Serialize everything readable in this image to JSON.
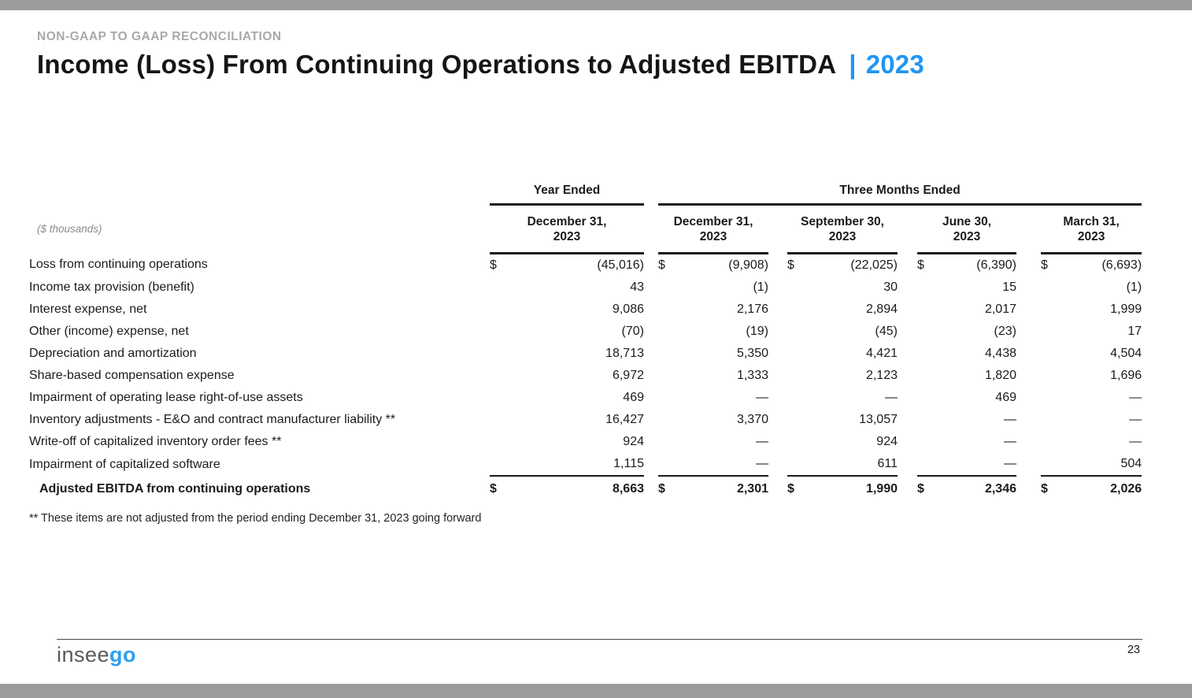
{
  "slide": {
    "eyebrow": "NON-GAAP TO GAAP RECONCILIATION",
    "title": "Income (Loss) From Continuing Operations to Adjusted EBITDA",
    "title_separator": "|",
    "title_year": "2023",
    "footnote": "** These items are not adjusted from the period ending December 31, 2023 going forward",
    "page_number": "23",
    "logo": {
      "text_gray": "insee",
      "text_blue": "go"
    },
    "colors": {
      "accent_blue": "#2196F3",
      "logo_blue": "#2BA0EE",
      "logo_gray": "#57595B",
      "bar_gray": "#9B9B9B",
      "eyebrow_gray": "#A9A9A9"
    }
  },
  "table": {
    "units_note": "($ thousands)",
    "currency_symbol": "$",
    "group_headers": {
      "year_ended": "Year Ended",
      "three_months": "Three Months Ended"
    },
    "periods": [
      {
        "line1": "December 31,",
        "line2": "2023"
      },
      {
        "line1": "December 31,",
        "line2": "2023"
      },
      {
        "line1": "September 30,",
        "line2": "2023"
      },
      {
        "line1": "June 30,",
        "line2": "2023"
      },
      {
        "line1": "March 31,",
        "line2": "2023"
      }
    ],
    "rows": [
      {
        "label": "Loss from continuing operations",
        "values": [
          "(45,016)",
          "(9,908)",
          "(22,025)",
          "(6,390)",
          "(6,693)"
        ]
      },
      {
        "label": "Income tax provision (benefit)",
        "values": [
          "43",
          "(1)",
          "30",
          "15",
          "(1)"
        ]
      },
      {
        "label": "Interest expense, net",
        "values": [
          "9,086",
          "2,176",
          "2,894",
          "2,017",
          "1,999"
        ]
      },
      {
        "label": "Other (income) expense, net",
        "values": [
          "(70)",
          "(19)",
          "(45)",
          "(23)",
          "17"
        ]
      },
      {
        "label": "Depreciation and amortization",
        "values": [
          "18,713",
          "5,350",
          "4,421",
          "4,438",
          "4,504"
        ]
      },
      {
        "label": "Share-based compensation expense",
        "values": [
          "6,972",
          "1,333",
          "2,123",
          "1,820",
          "1,696"
        ]
      },
      {
        "label": "Impairment of operating lease right-of-use assets",
        "values": [
          "469",
          "—",
          "—",
          "469",
          "—"
        ]
      },
      {
        "label": "Inventory adjustments - E&O and contract manufacturer liability **",
        "values": [
          "16,427",
          "3,370",
          "13,057",
          "—",
          "—"
        ]
      },
      {
        "label": "Write-off of capitalized inventory order fees **",
        "values": [
          "924",
          "—",
          "924",
          "—",
          "—"
        ]
      },
      {
        "label": "Impairment of capitalized software",
        "values": [
          "1,115",
          "—",
          "611",
          "—",
          "504"
        ]
      }
    ],
    "total_row": {
      "label": "Adjusted EBITDA from continuing operations",
      "values": [
        "8,663",
        "2,301",
        "1,990",
        "2,346",
        "2,026"
      ]
    }
  }
}
